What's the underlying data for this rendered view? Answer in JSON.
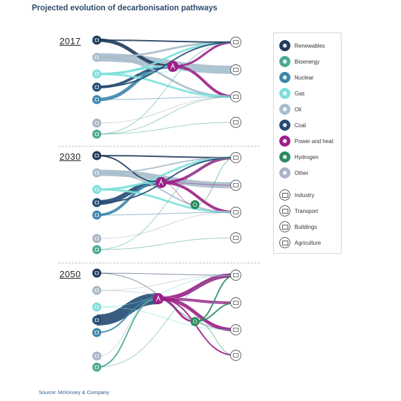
{
  "title": "Projected evolution of decarbonisation pathways",
  "source": "Source: McKinsey & Company",
  "colors": {
    "renewables": "#1f3b5c",
    "bioenergy": "#4aaa92",
    "nuclear": "#3b86aa",
    "gas": "#7ee0dc",
    "oil": "#a8bccb",
    "coal": "#234a72",
    "power_and_heat": "#9c1f86",
    "hydrogen": "#2b8a62",
    "other": "#a9b4c6"
  },
  "legend": {
    "sources": [
      {
        "key": "renewables",
        "label": "Renewables"
      },
      {
        "key": "bioenergy",
        "label": "Bioenergy"
      },
      {
        "key": "nuclear",
        "label": "Nuclear"
      },
      {
        "key": "gas",
        "label": "Gas"
      },
      {
        "key": "oil",
        "label": "Oil"
      },
      {
        "key": "coal",
        "label": "Coal"
      },
      {
        "key": "power_and_heat",
        "label": "Power and heat"
      },
      {
        "key": "hydrogen",
        "label": "Hydrogen"
      },
      {
        "key": "other",
        "label": "Other"
      }
    ],
    "sectors": [
      {
        "key": "industry",
        "label": "Industry",
        "icon": "factory-icon"
      },
      {
        "key": "transport",
        "label": "Transport",
        "icon": "car-icon"
      },
      {
        "key": "buildings",
        "label": "Buildings",
        "icon": "building-icon"
      },
      {
        "key": "agriculture",
        "label": "Agriculture",
        "icon": "tractor-icon"
      }
    ]
  },
  "panels": [
    {
      "year": "2017",
      "flows": [
        {
          "from": "renewables",
          "to": "industry",
          "w": 2
        },
        {
          "from": "renewables",
          "to": "power_and_heat",
          "w": 5
        },
        {
          "from": "oil",
          "to": "industry",
          "w": 3
        },
        {
          "from": "oil",
          "to": "transport",
          "w": 12
        },
        {
          "from": "oil",
          "to": "buildings",
          "w": 3
        },
        {
          "from": "oil",
          "to": "power_and_heat",
          "w": 2
        },
        {
          "from": "gas",
          "to": "industry",
          "w": 3
        },
        {
          "from": "gas",
          "to": "buildings",
          "w": 3
        },
        {
          "from": "gas",
          "to": "power_and_heat",
          "w": 3
        },
        {
          "from": "gas",
          "to": "transport",
          "w": 1
        },
        {
          "from": "coal",
          "to": "power_and_heat",
          "w": 4
        },
        {
          "from": "coal",
          "to": "industry",
          "w": 2
        },
        {
          "from": "nuclear",
          "to": "power_and_heat",
          "w": 5
        },
        {
          "from": "nuclear",
          "to": "buildings",
          "w": 1
        },
        {
          "from": "other",
          "to": "buildings",
          "w": 1
        },
        {
          "from": "bioenergy",
          "to": "industry",
          "w": 1
        },
        {
          "from": "bioenergy",
          "to": "buildings",
          "w": 1
        },
        {
          "from": "bioenergy",
          "to": "agriculture",
          "w": 1
        },
        {
          "from": "power_and_heat",
          "to": "industry",
          "w": 3
        },
        {
          "from": "power_and_heat",
          "to": "buildings",
          "w": 4
        }
      ]
    },
    {
      "year": "2030",
      "flows": [
        {
          "from": "renewables",
          "to": "industry",
          "w": 2
        },
        {
          "from": "renewables",
          "to": "power_and_heat",
          "w": 2
        },
        {
          "from": "oil",
          "to": "industry",
          "w": 2
        },
        {
          "from": "oil",
          "to": "transport",
          "w": 9
        },
        {
          "from": "oil",
          "to": "buildings",
          "w": 2
        },
        {
          "from": "gas",
          "to": "industry",
          "w": 3
        },
        {
          "from": "gas",
          "to": "buildings",
          "w": 3
        },
        {
          "from": "gas",
          "to": "power_and_heat",
          "w": 2
        },
        {
          "from": "coal",
          "to": "power_and_heat",
          "w": 7
        },
        {
          "from": "coal",
          "to": "industry",
          "w": 2
        },
        {
          "from": "nuclear",
          "to": "power_and_heat",
          "w": 4
        },
        {
          "from": "nuclear",
          "to": "buildings",
          "w": 1
        },
        {
          "from": "other",
          "to": "buildings",
          "w": 1
        },
        {
          "from": "bioenergy",
          "to": "industry",
          "w": 1
        },
        {
          "from": "bioenergy",
          "to": "agriculture",
          "w": 1
        },
        {
          "from": "power_and_heat",
          "to": "industry",
          "w": 4
        },
        {
          "from": "power_and_heat",
          "to": "buildings",
          "w": 4
        },
        {
          "from": "power_and_heat",
          "to": "transport",
          "w": 1
        },
        {
          "from": "power_and_heat",
          "to": "hydrogen",
          "w": 1
        },
        {
          "from": "hydrogen",
          "to": "industry",
          "w": 1
        }
      ]
    },
    {
      "year": "2050",
      "flows": [
        {
          "from": "renewables",
          "to": "industry",
          "w": 1
        },
        {
          "from": "renewables",
          "to": "buildings",
          "w": 1
        },
        {
          "from": "oil",
          "to": "industry",
          "w": 1
        },
        {
          "from": "oil",
          "to": "transport",
          "w": 1
        },
        {
          "from": "gas",
          "to": "industry",
          "w": 1
        },
        {
          "from": "gas",
          "to": "buildings",
          "w": 1
        },
        {
          "from": "coal",
          "to": "power_and_heat",
          "w": 16
        },
        {
          "from": "nuclear",
          "to": "power_and_heat",
          "w": 2
        },
        {
          "from": "other",
          "to": "power_and_heat",
          "w": 1
        },
        {
          "from": "bioenergy",
          "to": "power_and_heat",
          "w": 2
        },
        {
          "from": "bioenergy",
          "to": "industry",
          "w": 1
        },
        {
          "from": "power_and_heat",
          "to": "industry",
          "w": 6
        },
        {
          "from": "power_and_heat",
          "to": "transport",
          "w": 4
        },
        {
          "from": "power_and_heat",
          "to": "buildings",
          "w": 5
        },
        {
          "from": "power_and_heat",
          "to": "agriculture",
          "w": 2
        },
        {
          "from": "power_and_heat",
          "to": "hydrogen",
          "w": 3
        },
        {
          "from": "hydrogen",
          "to": "industry",
          "w": 2
        },
        {
          "from": "hydrogen",
          "to": "transport",
          "w": 2
        },
        {
          "from": "hydrogen",
          "to": "agriculture",
          "w": 1
        }
      ]
    }
  ]
}
